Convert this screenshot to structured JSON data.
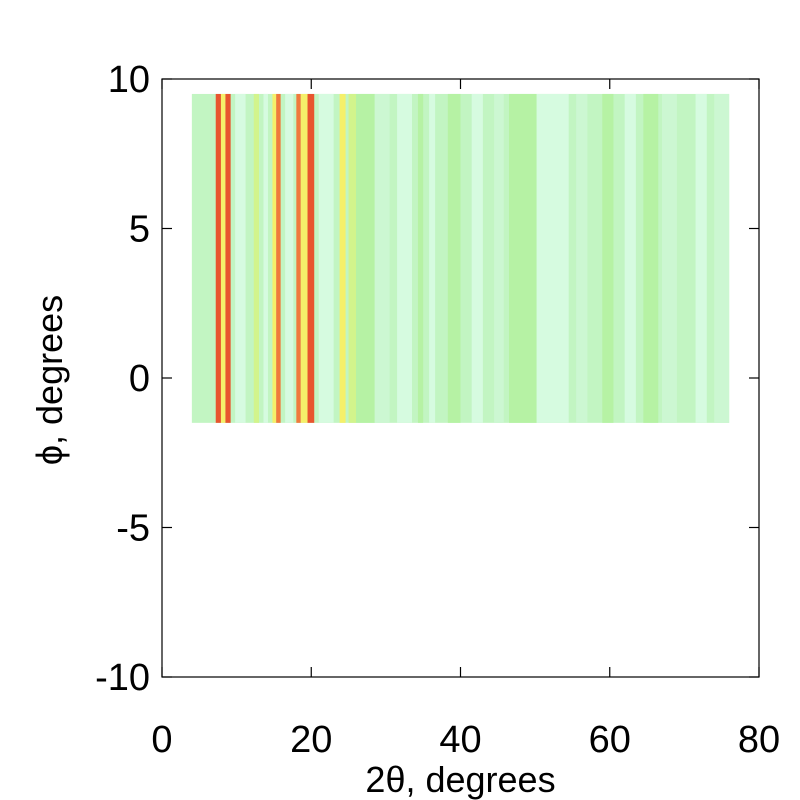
{
  "chart_data": {
    "type": "heatmap",
    "title": "",
    "xlabel": "2θ, degrees",
    "ylabel": "ϕ, degrees",
    "xlim": [
      0,
      80
    ],
    "ylim": [
      -10,
      10
    ],
    "x_ticks": [
      0,
      20,
      40,
      60,
      80
    ],
    "x_tick_labels": [
      "0",
      "20",
      "40",
      "60",
      "80"
    ],
    "y_ticks": [
      10,
      5,
      0,
      -5,
      -10
    ],
    "y_tick_labels": [
      "10",
      "5",
      "0",
      "-5",
      "-10"
    ],
    "grid": false,
    "legend": "none",
    "phi_range": [
      -1.5,
      9.5
    ],
    "colors": {
      "background_band": "#c2f5c2",
      "very_pale": "#d6fbe0",
      "pale": "#ccf7d2",
      "mid_green": "#b6f2a4",
      "yellow_green": "#d2f48c",
      "yellow": "#f5f06a",
      "orange": "#f07a3c",
      "red_orange": "#e8552e"
    },
    "bands": [
      {
        "x0": 4.0,
        "x1": 76.0,
        "color": "#c2f5c2"
      },
      {
        "x0": 7.2,
        "x1": 7.9,
        "color": "#e8552e"
      },
      {
        "x0": 7.9,
        "x1": 8.5,
        "color": "#f5f06a"
      },
      {
        "x0": 8.5,
        "x1": 9.2,
        "color": "#e8552e"
      },
      {
        "x0": 9.8,
        "x1": 11.2,
        "color": "#d6fbe0"
      },
      {
        "x0": 12.3,
        "x1": 13.0,
        "color": "#d2f48c"
      },
      {
        "x0": 13.6,
        "x1": 14.2,
        "color": "#d6fbe0"
      },
      {
        "x0": 14.8,
        "x1": 15.3,
        "color": "#f5f06a"
      },
      {
        "x0": 15.3,
        "x1": 15.9,
        "color": "#f07a3c"
      },
      {
        "x0": 16.5,
        "x1": 17.6,
        "color": "#d6fbe0"
      },
      {
        "x0": 18.0,
        "x1": 18.6,
        "color": "#f07a3c"
      },
      {
        "x0": 18.6,
        "x1": 19.5,
        "color": "#f5f06a"
      },
      {
        "x0": 19.5,
        "x1": 20.4,
        "color": "#e8552e"
      },
      {
        "x0": 21.0,
        "x1": 23.0,
        "color": "#d6fbe0"
      },
      {
        "x0": 23.8,
        "x1": 24.6,
        "color": "#f5f06a"
      },
      {
        "x0": 25.0,
        "x1": 26.0,
        "color": "#d2f48c"
      },
      {
        "x0": 26.0,
        "x1": 28.5,
        "color": "#b6f2a4"
      },
      {
        "x0": 28.5,
        "x1": 30.5,
        "color": "#ccf7d2"
      },
      {
        "x0": 31.5,
        "x1": 33.5,
        "color": "#d6fbe0"
      },
      {
        "x0": 34.3,
        "x1": 35.0,
        "color": "#b6f2a4"
      },
      {
        "x0": 35.8,
        "x1": 36.6,
        "color": "#d6fbe0"
      },
      {
        "x0": 38.3,
        "x1": 40.0,
        "color": "#b6f2a4"
      },
      {
        "x0": 41.5,
        "x1": 43.0,
        "color": "#d6fbe0"
      },
      {
        "x0": 44.5,
        "x1": 45.8,
        "color": "#ccf7d2"
      },
      {
        "x0": 46.5,
        "x1": 50.2,
        "color": "#b6f2a4"
      },
      {
        "x0": 50.2,
        "x1": 54.5,
        "color": "#d6fbe0"
      },
      {
        "x0": 55.5,
        "x1": 57.0,
        "color": "#ccf7d2"
      },
      {
        "x0": 59.0,
        "x1": 60.5,
        "color": "#b6f2a4"
      },
      {
        "x0": 62.0,
        "x1": 63.5,
        "color": "#d6fbe0"
      },
      {
        "x0": 64.5,
        "x1": 66.5,
        "color": "#b6f2a4"
      },
      {
        "x0": 67.0,
        "x1": 69.0,
        "color": "#ccf7d2"
      },
      {
        "x0": 71.5,
        "x1": 73.0,
        "color": "#d6fbe0"
      },
      {
        "x0": 74.0,
        "x1": 76.0,
        "color": "#ccf7d2"
      }
    ]
  }
}
